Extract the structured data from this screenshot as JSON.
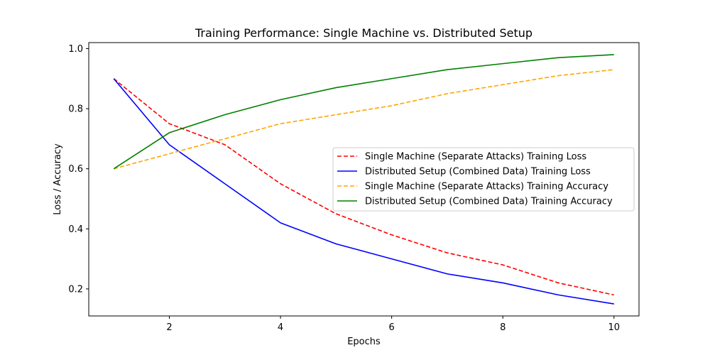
{
  "chart_data": {
    "type": "line",
    "title": "Training Performance: Single Machine vs. Distributed Setup",
    "xlabel": "Epochs",
    "ylabel": "Loss / Accuracy",
    "xlim": [
      0.55,
      10.45
    ],
    "ylim": [
      0.11,
      1.02
    ],
    "xticks": [
      2,
      4,
      6,
      8,
      10
    ],
    "yticks": [
      0.2,
      0.4,
      0.6,
      0.8,
      1.0
    ],
    "x": [
      1,
      2,
      3,
      4,
      5,
      6,
      7,
      8,
      9,
      10
    ],
    "grid": false,
    "legend_position": "center-right",
    "series": [
      {
        "name": "Single Machine (Separate Attacks) Training Loss",
        "color": "#ff0000",
        "dash": "dashed",
        "values": [
          0.9,
          0.75,
          0.68,
          0.55,
          0.45,
          0.38,
          0.32,
          0.28,
          0.22,
          0.18
        ]
      },
      {
        "name": "Distributed Setup (Combined Data) Training Loss",
        "color": "#0000ff",
        "dash": "solid",
        "values": [
          0.9,
          0.68,
          0.55,
          0.42,
          0.35,
          0.3,
          0.25,
          0.22,
          0.18,
          0.15
        ]
      },
      {
        "name": "Single Machine (Separate Attacks) Training Accuracy",
        "color": "#ffa500",
        "dash": "dashed",
        "values": [
          0.6,
          0.65,
          0.7,
          0.75,
          0.78,
          0.81,
          0.85,
          0.88,
          0.91,
          0.93
        ]
      },
      {
        "name": "Distributed Setup (Combined Data) Training Accuracy",
        "color": "#008000",
        "dash": "solid",
        "values": [
          0.6,
          0.72,
          0.78,
          0.83,
          0.87,
          0.9,
          0.93,
          0.95,
          0.97,
          0.98
        ]
      }
    ]
  }
}
